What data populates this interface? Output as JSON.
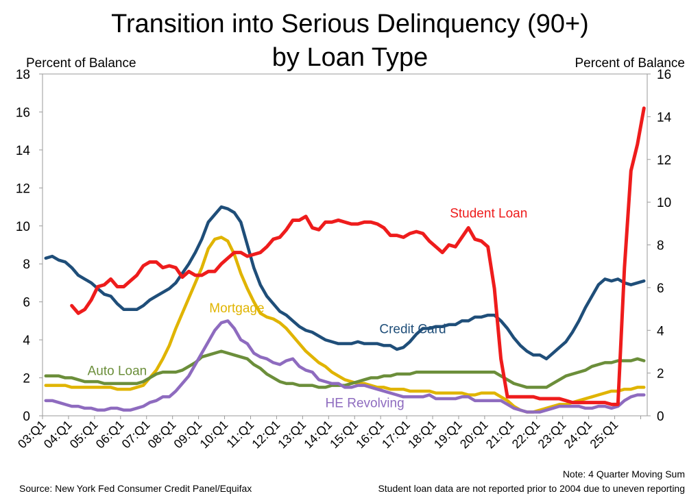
{
  "page": {
    "title_line1": "Transition into Serious Delinquency (90+)",
    "title_line2": "by Loan Type",
    "left_axis_label": "Percent of Balance",
    "right_axis_label": "Percent of Balance",
    "note": "Note: 4 Quarter Moving Sum",
    "source": "Source: New York Fed Consumer Credit Panel/Equifax",
    "disclaimer": "Student loan data are not reported prior to 2004 due to uneven reporting"
  },
  "chart_data": {
    "type": "line",
    "title": "Transition into Serious Delinquency (90+) by Loan Type",
    "xlabel": "",
    "ylabel": "Percent of Balance",
    "y2label": "Percent of Balance",
    "ylim": [
      0,
      18
    ],
    "y2lim": [
      0,
      16
    ],
    "yticks": [
      "0",
      "2",
      "4",
      "6",
      "8",
      "10",
      "12",
      "14",
      "16",
      "18"
    ],
    "y2ticks": [
      "0",
      "2",
      "4",
      "6",
      "8",
      "10",
      "12",
      "14",
      "16"
    ],
    "xticks": [
      "03:Q1",
      "04:Q1",
      "05:Q1",
      "06:Q1",
      "07:Q1",
      "08:Q1",
      "09:Q1",
      "10:Q1",
      "11:Q1",
      "12:Q1",
      "13:Q1",
      "14:Q1",
      "15:Q1",
      "16:Q1",
      "17:Q1",
      "18:Q1",
      "19:Q1",
      "20:Q1",
      "21:Q1",
      "22:Q1",
      "23:Q1",
      "24:Q1",
      "25:Q1"
    ],
    "x_start": "2003 Q1",
    "x_end": "2025 Q2",
    "grid": false,
    "series": [
      {
        "name": "Credit Card",
        "color": "#1f4e79",
        "axis": "left",
        "label": "Credit Card",
        "values": [
          8.3,
          8.4,
          8.2,
          8.1,
          7.8,
          7.4,
          7.2,
          7.0,
          6.7,
          6.4,
          6.3,
          5.9,
          5.6,
          5.6,
          5.6,
          5.8,
          6.1,
          6.3,
          6.5,
          6.7,
          7.0,
          7.5,
          8.0,
          8.6,
          9.3,
          10.2,
          10.6,
          11.0,
          10.9,
          10.7,
          10.2,
          9.0,
          7.8,
          6.9,
          6.3,
          5.9,
          5.5,
          5.3,
          5.0,
          4.7,
          4.5,
          4.4,
          4.2,
          4.0,
          3.9,
          3.8,
          3.8,
          3.8,
          3.9,
          3.8,
          3.8,
          3.8,
          3.7,
          3.7,
          3.5,
          3.6,
          3.9,
          4.3,
          4.6,
          4.6,
          4.7,
          4.7,
          4.8,
          4.8,
          5.0,
          5.0,
          5.2,
          5.2,
          5.3,
          5.3,
          5.0,
          4.6,
          4.1,
          3.7,
          3.4,
          3.2,
          3.2,
          3.0,
          3.3,
          3.6,
          3.9,
          4.4,
          5.0,
          5.7,
          6.3,
          6.9,
          7.2,
          7.1,
          7.2,
          7.0,
          6.9,
          7.0,
          7.1
        ]
      },
      {
        "name": "Mortgage",
        "color": "#e0b400",
        "axis": "left",
        "label": "Mortgage",
        "values": [
          1.6,
          1.6,
          1.6,
          1.6,
          1.5,
          1.5,
          1.5,
          1.5,
          1.5,
          1.5,
          1.5,
          1.4,
          1.4,
          1.4,
          1.5,
          1.6,
          2.0,
          2.4,
          3.0,
          3.7,
          4.6,
          5.4,
          6.2,
          7.0,
          7.8,
          8.8,
          9.3,
          9.4,
          9.2,
          8.5,
          7.5,
          6.7,
          6.0,
          5.4,
          5.2,
          5.1,
          4.9,
          4.6,
          4.2,
          3.8,
          3.4,
          3.1,
          2.8,
          2.6,
          2.3,
          2.1,
          1.9,
          1.8,
          1.7,
          1.7,
          1.6,
          1.5,
          1.5,
          1.4,
          1.4,
          1.4,
          1.3,
          1.3,
          1.3,
          1.3,
          1.2,
          1.2,
          1.2,
          1.2,
          1.2,
          1.1,
          1.1,
          1.2,
          1.2,
          1.2,
          1.0,
          0.8,
          0.5,
          0.3,
          0.2,
          0.2,
          0.3,
          0.4,
          0.5,
          0.6,
          0.6,
          0.7,
          0.8,
          0.9,
          1.0,
          1.1,
          1.2,
          1.3,
          1.3,
          1.4,
          1.4,
          1.5,
          1.5
        ]
      },
      {
        "name": "Auto Loan",
        "color": "#6b8e3a",
        "axis": "left",
        "label": "Auto Loan",
        "values": [
          2.1,
          2.1,
          2.1,
          2.0,
          2.0,
          1.9,
          1.8,
          1.8,
          1.8,
          1.7,
          1.7,
          1.7,
          1.7,
          1.7,
          1.7,
          1.8,
          2.0,
          2.2,
          2.3,
          2.3,
          2.3,
          2.4,
          2.6,
          2.8,
          3.1,
          3.2,
          3.3,
          3.4,
          3.3,
          3.2,
          3.1,
          3.0,
          2.7,
          2.5,
          2.2,
          2.0,
          1.8,
          1.7,
          1.7,
          1.6,
          1.6,
          1.6,
          1.5,
          1.5,
          1.6,
          1.6,
          1.6,
          1.7,
          1.8,
          1.9,
          2.0,
          2.0,
          2.1,
          2.1,
          2.2,
          2.2,
          2.2,
          2.3,
          2.3,
          2.3,
          2.3,
          2.3,
          2.3,
          2.3,
          2.3,
          2.3,
          2.3,
          2.3,
          2.3,
          2.3,
          2.1,
          1.9,
          1.7,
          1.6,
          1.5,
          1.5,
          1.5,
          1.5,
          1.7,
          1.9,
          2.1,
          2.2,
          2.3,
          2.4,
          2.6,
          2.7,
          2.8,
          2.8,
          2.9,
          2.9,
          2.9,
          3.0,
          2.9
        ]
      },
      {
        "name": "HE Revolving",
        "color": "#8e6bbf",
        "axis": "left",
        "label": "HE Revolving",
        "values": [
          0.8,
          0.8,
          0.7,
          0.6,
          0.5,
          0.5,
          0.4,
          0.4,
          0.3,
          0.3,
          0.4,
          0.4,
          0.3,
          0.3,
          0.4,
          0.5,
          0.7,
          0.8,
          1.0,
          1.0,
          1.3,
          1.7,
          2.1,
          2.7,
          3.3,
          3.9,
          4.5,
          4.9,
          5.0,
          4.6,
          4.0,
          3.8,
          3.3,
          3.1,
          3.0,
          2.8,
          2.7,
          2.9,
          3.0,
          2.6,
          2.4,
          2.3,
          1.9,
          1.8,
          1.7,
          1.7,
          1.5,
          1.5,
          1.6,
          1.6,
          1.5,
          1.4,
          1.3,
          1.2,
          1.1,
          1.0,
          1.0,
          1.0,
          1.0,
          1.1,
          0.9,
          0.9,
          0.9,
          0.9,
          1.0,
          1.0,
          0.8,
          0.8,
          0.8,
          0.8,
          0.8,
          0.6,
          0.4,
          0.3,
          0.2,
          0.2,
          0.2,
          0.3,
          0.4,
          0.5,
          0.5,
          0.5,
          0.5,
          0.4,
          0.4,
          0.5,
          0.5,
          0.4,
          0.5,
          0.8,
          1.0,
          1.1,
          1.1
        ]
      },
      {
        "name": "Student Loan",
        "color": "#ee1c1c",
        "axis": "left",
        "label": "Student Loan",
        "values": [
          null,
          null,
          null,
          null,
          5.8,
          5.4,
          5.6,
          6.1,
          6.8,
          6.9,
          7.2,
          6.8,
          6.8,
          7.1,
          7.4,
          7.9,
          8.1,
          8.1,
          7.8,
          7.9,
          7.8,
          7.3,
          7.6,
          7.4,
          7.4,
          7.6,
          7.6,
          8.0,
          8.3,
          8.6,
          8.6,
          8.4,
          8.5,
          8.6,
          8.9,
          9.3,
          9.4,
          9.8,
          10.3,
          10.3,
          10.5,
          9.9,
          9.8,
          10.2,
          10.2,
          10.3,
          10.2,
          10.1,
          10.1,
          10.2,
          10.2,
          10.1,
          9.9,
          9.5,
          9.5,
          9.4,
          9.6,
          9.7,
          9.6,
          9.2,
          8.9,
          8.6,
          9.0,
          8.9,
          9.4,
          9.9,
          9.3,
          9.2,
          8.9,
          6.7,
          3.0,
          1.0,
          1.0,
          1.0,
          1.0,
          1.0,
          0.9,
          0.9,
          0.9,
          0.9,
          0.8,
          0.7,
          0.7,
          0.7,
          0.7,
          0.7,
          0.7,
          0.6,
          0.6,
          7.8,
          12.9,
          14.3,
          16.2
        ]
      }
    ],
    "annotations": [
      {
        "text": "Student Loan",
        "x_index": 63,
        "y": 10.7
      },
      {
        "text": "Credit Card",
        "x_index": 53,
        "y": 4.6
      },
      {
        "text": "Mortgage",
        "x_index": 28,
        "y": 5.7
      },
      {
        "text": "Auto Loan",
        "x_index": 8,
        "y": 2.4
      },
      {
        "text": "HE Revolving",
        "x_index": 43,
        "y": 0.7
      }
    ]
  }
}
